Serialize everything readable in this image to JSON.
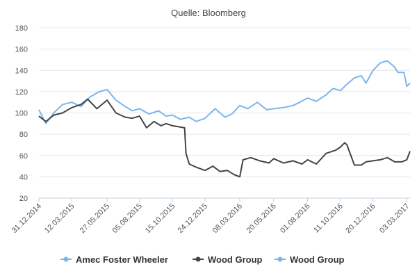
{
  "chart_data": {
    "type": "line",
    "title": "Quelle: Bloomberg",
    "xlabel": "",
    "ylabel": "",
    "ylim": [
      20,
      180
    ],
    "yticks": [
      20,
      40,
      60,
      80,
      100,
      120,
      140,
      160,
      180
    ],
    "xticks": [
      "31.12.2014",
      "12.03.2015",
      "27.05.2015",
      "05.08.2015",
      "15.10.2015",
      "24.12.2015",
      "08.03.2016",
      "20.05.2016",
      "01.08.2016",
      "11.10.2016",
      "20.12.2016",
      "03.03.2017"
    ],
    "grid": true,
    "legend_position": "bottom",
    "series": [
      {
        "name": "Amec Foster Wheeler",
        "color": "#7cb5ec",
        "x": [
          "31.12.2014",
          "15.01.2015",
          "01.02.2015",
          "20.02.2015",
          "12.03.2015",
          "01.04.2015",
          "20.04.2015",
          "10.05.2015",
          "27.05.2015",
          "15.06.2015",
          "05.07.2015",
          "20.07.2015",
          "05.08.2015",
          "25.08.2015",
          "15.09.2015",
          "01.10.2015",
          "15.10.2015",
          "01.11.2015",
          "20.11.2015",
          "05.12.2015",
          "24.12.2015",
          "15.01.2016",
          "05.02.2016",
          "20.02.2016",
          "08.03.2016",
          "25.03.2016",
          "15.04.2016",
          "05.05.2016",
          "20.05.2016",
          "10.06.2016",
          "01.07.2016",
          "15.07.2016",
          "01.08.2016",
          "20.08.2016",
          "10.09.2016",
          "25.09.2016",
          "11.10.2016",
          "25.10.2016",
          "10.11.2016",
          "25.11.2016",
          "05.12.2016",
          "20.12.2016",
          "05.01.2017",
          "20.01.2017",
          "05.02.2017",
          "12.02.2017",
          "25.02.2017",
          "03.03.2017",
          "10.03.2017"
        ],
        "values": [
          103,
          90,
          100,
          108,
          110,
          106,
          115,
          120,
          122,
          112,
          106,
          102,
          104,
          99,
          102,
          97,
          98,
          94,
          96,
          92,
          95,
          104,
          96,
          99,
          107,
          104,
          110,
          103,
          104,
          105,
          107,
          110,
          114,
          111,
          117,
          123,
          121,
          127,
          133,
          135,
          128,
          140,
          147,
          149,
          143,
          138,
          138,
          125,
          128
        ]
      },
      {
        "name": "Wood Group",
        "color": "#434348",
        "x": [
          "31.12.2014",
          "15.01.2015",
          "01.02.2015",
          "20.02.2015",
          "12.03.2015",
          "01.04.2015",
          "15.04.2015",
          "05.05.2015",
          "27.05.2015",
          "15.06.2015",
          "05.07.2015",
          "20.07.2015",
          "05.08.2015",
          "20.08.2015",
          "05.09.2015",
          "20.09.2015",
          "01.10.2015",
          "15.10.2015",
          "10.11.2015",
          "13.11.2015",
          "20.11.2015",
          "05.12.2015",
          "24.12.2015",
          "10.01.2016",
          "25.01.2016",
          "10.02.2016",
          "25.02.2016",
          "08.03.2016",
          "15.03.2016",
          "01.04.2016",
          "20.04.2016",
          "10.05.2016",
          "20.05.2016",
          "10.06.2016",
          "01.07.2016",
          "20.07.2016",
          "01.08.2016",
          "20.08.2016",
          "10.09.2016",
          "01.10.2016",
          "11.10.2016",
          "20.10.2016",
          "25.10.2016",
          "10.11.2016",
          "25.11.2016",
          "05.12.2016",
          "20.12.2016",
          "05.01.2017",
          "20.01.2017",
          "05.02.2017",
          "20.02.2017",
          "03.03.2017",
          "10.03.2017"
        ],
        "values": [
          97,
          92,
          98,
          100,
          105,
          108,
          113,
          104,
          112,
          100,
          96,
          95,
          97,
          86,
          92,
          88,
          90,
          88,
          86,
          62,
          52,
          49,
          46,
          50,
          45,
          46,
          42,
          40,
          56,
          58,
          55,
          53,
          57,
          53,
          55,
          52,
          56,
          52,
          62,
          65,
          68,
          72,
          70,
          51,
          51,
          54,
          55,
          56,
          58,
          54,
          54,
          56,
          64
        ]
      },
      {
        "name": "Wood Group",
        "color": "#7cb5ec",
        "x": [],
        "values": []
      }
    ]
  }
}
